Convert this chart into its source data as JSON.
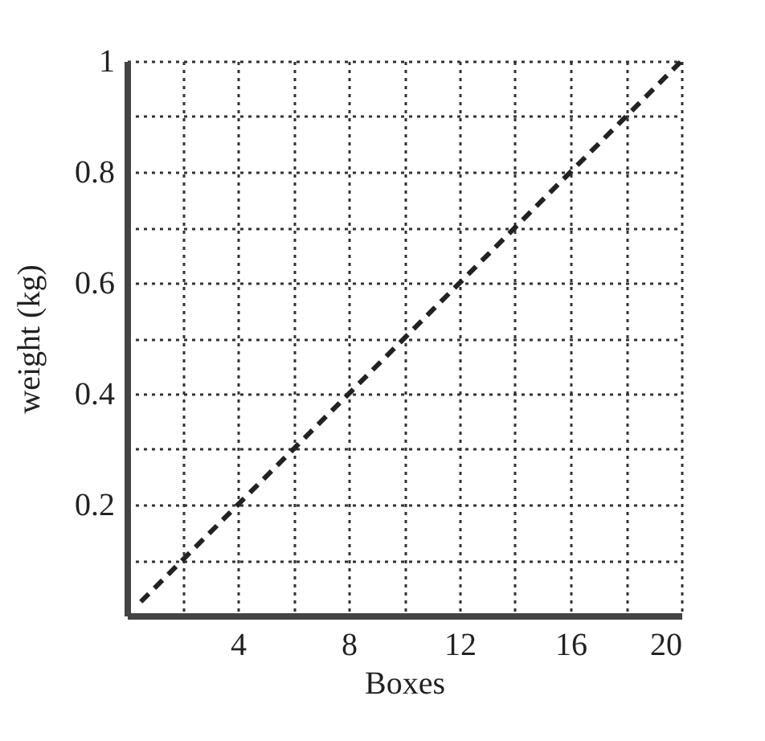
{
  "chart_data": {
    "type": "line",
    "xlabel": "Boxes",
    "ylabel": "weight (kg)",
    "series": [
      {
        "color": "#222222",
        "x": [
          0.5,
          20
        ],
        "values": [
          0.025,
          1
        ]
      }
    ],
    "xlim": [
      0,
      20
    ],
    "ylim": [
      0,
      1
    ],
    "xticks": [
      {
        "value": 2,
        "label": null
      },
      4,
      {
        "value": 6,
        "label": null
      },
      8,
      {
        "value": 10,
        "label": null
      },
      12,
      {
        "value": 14,
        "label": null
      },
      16,
      {
        "value": 18,
        "label": null
      },
      20
    ],
    "yticks": [
      {
        "value": 0.1,
        "label": null
      },
      0.2,
      {
        "value": 0.3,
        "label": null
      },
      0.4,
      {
        "value": 0.5,
        "label": null
      },
      0.6,
      {
        "value": 0.7,
        "label": null
      },
      0.8,
      {
        "value": 0.9,
        "label": null
      },
      1
    ],
    "grid": true,
    "line_style": "dashed",
    "marker": "none"
  }
}
